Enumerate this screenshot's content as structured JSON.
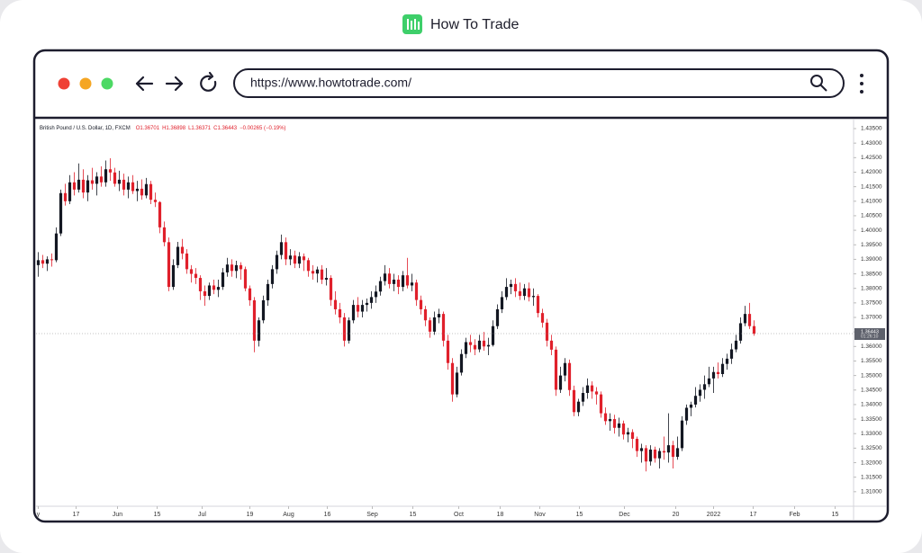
{
  "header": {
    "title": "How To Trade"
  },
  "browser": {
    "url": "https://www.howtotrade.com/"
  },
  "chart_data": {
    "type": "candlestick",
    "legend": {
      "instrument": "British Pound / U.S. Dollar, 1D, FXCM",
      "ohlc": [
        "O1.36701",
        "H1.36898",
        "L1.36371",
        "C1.36443"
      ],
      "change": "−0.00265 (−0.19%)"
    },
    "countdown": "01:26:10",
    "up_color": "#131722",
    "down_color": "#e0202b",
    "xlim": [
      -0.5,
      181.1
    ],
    "ylim": [
      1.305,
      1.4381
    ],
    "xticks": [
      {
        "value": 0,
        "label": "y"
      },
      {
        "value": 8.4,
        "label": "17"
      },
      {
        "value": 17.6,
        "label": "Jun"
      },
      {
        "value": 26.4,
        "label": "15"
      },
      {
        "value": 36.4,
        "label": "Jul"
      },
      {
        "value": 47,
        "label": "19"
      },
      {
        "value": 55.6,
        "label": "Aug"
      },
      {
        "value": 64.2,
        "label": "16"
      },
      {
        "value": 74.2,
        "label": "Sep"
      },
      {
        "value": 83.2,
        "label": "15"
      },
      {
        "value": 93.4,
        "label": "Oct"
      },
      {
        "value": 102.6,
        "label": "18"
      },
      {
        "value": 111.4,
        "label": "Nov"
      },
      {
        "value": 120.2,
        "label": "15"
      },
      {
        "value": 130.2,
        "label": "Dec"
      },
      {
        "value": 141.6,
        "label": "20"
      },
      {
        "value": 150,
        "label": "2022"
      },
      {
        "value": 158.8,
        "label": "17"
      },
      {
        "value": 168,
        "label": "Feb"
      },
      {
        "value": 177,
        "label": "15"
      }
    ],
    "yticks": [
      {
        "value": 1.435,
        "label": "1.43500"
      },
      {
        "value": 1.43,
        "label": "1.43000"
      },
      {
        "value": 1.425,
        "label": "1.42500"
      },
      {
        "value": 1.42,
        "label": "1.42000"
      },
      {
        "value": 1.415,
        "label": "1.41500"
      },
      {
        "value": 1.41,
        "label": "1.41000"
      },
      {
        "value": 1.405,
        "label": "1.40500"
      },
      {
        "value": 1.4,
        "label": "1.40000"
      },
      {
        "value": 1.395,
        "label": "1.39500"
      },
      {
        "value": 1.39,
        "label": "1.39000"
      },
      {
        "value": 1.385,
        "label": "1.38500"
      },
      {
        "value": 1.38,
        "label": "1.38000"
      },
      {
        "value": 1.375,
        "label": "1.37500"
      },
      {
        "value": 1.37,
        "label": "1.37000"
      },
      {
        "value": 1.365,
        "label": "1.36500"
      },
      {
        "value": 1.36,
        "label": "1.36000"
      },
      {
        "value": 1.355,
        "label": "1.35500"
      },
      {
        "value": 1.35,
        "label": "1.35000"
      },
      {
        "value": 1.345,
        "label": "1.34500"
      },
      {
        "value": 1.34,
        "label": "1.34000"
      },
      {
        "value": 1.335,
        "label": "1.33500"
      },
      {
        "value": 1.33,
        "label": "1.33000"
      },
      {
        "value": 1.325,
        "label": "1.32500"
      },
      {
        "value": 1.32,
        "label": "1.32000"
      },
      {
        "value": 1.315,
        "label": "1.31500"
      },
      {
        "value": 1.31,
        "label": "1.31000"
      }
    ],
    "candles": [
      [
        1.388,
        1.3925,
        1.384,
        1.3897
      ],
      [
        1.3897,
        1.3915,
        1.387,
        1.3885
      ],
      [
        1.3885,
        1.391,
        1.386,
        1.39
      ],
      [
        1.39,
        1.392,
        1.3875,
        1.3897
      ],
      [
        1.3897,
        1.401,
        1.389,
        1.3989
      ],
      [
        1.3989,
        1.414,
        1.398,
        1.4128
      ],
      [
        1.4128,
        1.416,
        1.4085,
        1.41
      ],
      [
        1.41,
        1.419,
        1.409,
        1.4165
      ],
      [
        1.4165,
        1.42,
        1.412,
        1.414
      ],
      [
        1.414,
        1.423,
        1.413,
        1.4174
      ],
      [
        1.4174,
        1.421,
        1.411,
        1.413
      ],
      [
        1.413,
        1.419,
        1.41,
        1.4172
      ],
      [
        1.4172,
        1.4215,
        1.414,
        1.416
      ],
      [
        1.416,
        1.42,
        1.412,
        1.4185
      ],
      [
        1.4185,
        1.422,
        1.415,
        1.4165
      ],
      [
        1.4165,
        1.424,
        1.415,
        1.421
      ],
      [
        1.421,
        1.4248,
        1.417,
        1.4199
      ],
      [
        1.4199,
        1.4215,
        1.415,
        1.416
      ],
      [
        1.416,
        1.4205,
        1.4135,
        1.4174
      ],
      [
        1.4174,
        1.4195,
        1.412,
        1.414
      ],
      [
        1.414,
        1.4185,
        1.411,
        1.4165
      ],
      [
        1.4165,
        1.419,
        1.4125,
        1.4135
      ],
      [
        1.4135,
        1.417,
        1.41,
        1.4143
      ],
      [
        1.4143,
        1.4175,
        1.4105,
        1.412
      ],
      [
        1.412,
        1.418,
        1.411,
        1.4159
      ],
      [
        1.4159,
        1.417,
        1.409,
        1.4105
      ],
      [
        1.4105,
        1.413,
        1.408,
        1.4097
      ],
      [
        1.4097,
        1.41,
        1.399,
        1.401
      ],
      [
        1.401,
        1.403,
        1.3945,
        1.3959
      ],
      [
        1.3959,
        1.3975,
        1.379,
        1.3805
      ],
      [
        1.3805,
        1.39,
        1.3795,
        1.388
      ],
      [
        1.388,
        1.396,
        1.387,
        1.3943
      ],
      [
        1.3943,
        1.397,
        1.39,
        1.392
      ],
      [
        1.392,
        1.3935,
        1.385,
        1.3866
      ],
      [
        1.3866,
        1.388,
        1.382,
        1.385
      ],
      [
        1.385,
        1.387,
        1.3815,
        1.3836
      ],
      [
        1.3836,
        1.3845,
        1.376,
        1.379
      ],
      [
        1.379,
        1.381,
        1.374,
        1.3774
      ],
      [
        1.3774,
        1.382,
        1.376,
        1.381
      ],
      [
        1.381,
        1.383,
        1.378,
        1.3795
      ],
      [
        1.3795,
        1.383,
        1.377,
        1.3805
      ],
      [
        1.3805,
        1.387,
        1.3795,
        1.3855
      ],
      [
        1.3855,
        1.3905,
        1.384,
        1.3882
      ],
      [
        1.3882,
        1.39,
        1.384,
        1.386
      ],
      [
        1.386,
        1.3895,
        1.3835,
        1.388
      ],
      [
        1.388,
        1.389,
        1.383,
        1.3866
      ],
      [
        1.3866,
        1.3875,
        1.379,
        1.38
      ],
      [
        1.38,
        1.381,
        1.374,
        1.3759
      ],
      [
        1.3759,
        1.377,
        1.358,
        1.362
      ],
      [
        1.362,
        1.37,
        1.36,
        1.369
      ],
      [
        1.369,
        1.3775,
        1.368,
        1.3759
      ],
      [
        1.3759,
        1.383,
        1.374,
        1.3815
      ],
      [
        1.3815,
        1.388,
        1.38,
        1.3866
      ],
      [
        1.3866,
        1.393,
        1.385,
        1.3915
      ],
      [
        1.3915,
        1.3985,
        1.39,
        1.3959
      ],
      [
        1.3959,
        1.3975,
        1.388,
        1.39
      ],
      [
        1.39,
        1.3935,
        1.388,
        1.3913
      ],
      [
        1.3913,
        1.393,
        1.387,
        1.3885
      ],
      [
        1.3885,
        1.3925,
        1.387,
        1.391
      ],
      [
        1.391,
        1.392,
        1.386,
        1.3897
      ],
      [
        1.3897,
        1.3905,
        1.384,
        1.386
      ],
      [
        1.386,
        1.388,
        1.383,
        1.3851
      ],
      [
        1.3851,
        1.3875,
        1.382,
        1.3865
      ],
      [
        1.3865,
        1.388,
        1.3815,
        1.383
      ],
      [
        1.383,
        1.387,
        1.381,
        1.3836
      ],
      [
        1.3836,
        1.3845,
        1.374,
        1.376
      ],
      [
        1.376,
        1.379,
        1.371,
        1.3728
      ],
      [
        1.3728,
        1.375,
        1.368,
        1.37
      ],
      [
        1.37,
        1.3715,
        1.36,
        1.362
      ],
      [
        1.362,
        1.37,
        1.361,
        1.369
      ],
      [
        1.369,
        1.376,
        1.368,
        1.3743
      ],
      [
        1.3743,
        1.377,
        1.37,
        1.372
      ],
      [
        1.372,
        1.376,
        1.37,
        1.3743
      ],
      [
        1.3743,
        1.3765,
        1.372,
        1.375
      ],
      [
        1.375,
        1.379,
        1.373,
        1.377
      ],
      [
        1.377,
        1.381,
        1.375,
        1.3789
      ],
      [
        1.3789,
        1.384,
        1.3775,
        1.3825
      ],
      [
        1.3825,
        1.388,
        1.381,
        1.3851
      ],
      [
        1.3851,
        1.387,
        1.38,
        1.3815
      ],
      [
        1.3815,
        1.385,
        1.379,
        1.383
      ],
      [
        1.383,
        1.3845,
        1.378,
        1.3805
      ],
      [
        1.3805,
        1.386,
        1.379,
        1.3845
      ],
      [
        1.3845,
        1.3905,
        1.38,
        1.381
      ],
      [
        1.381,
        1.385,
        1.379,
        1.382
      ],
      [
        1.382,
        1.383,
        1.374,
        1.376
      ],
      [
        1.376,
        1.3775,
        1.371,
        1.3728
      ],
      [
        1.3728,
        1.374,
        1.367,
        1.369
      ],
      [
        1.369,
        1.37,
        1.363,
        1.3651
      ],
      [
        1.3651,
        1.372,
        1.364,
        1.37
      ],
      [
        1.37,
        1.373,
        1.368,
        1.3712
      ],
      [
        1.3712,
        1.372,
        1.36,
        1.362
      ],
      [
        1.362,
        1.364,
        1.352,
        1.3543
      ],
      [
        1.3543,
        1.356,
        1.341,
        1.3435
      ],
      [
        1.3435,
        1.353,
        1.3425,
        1.351
      ],
      [
        1.351,
        1.359,
        1.35,
        1.3574
      ],
      [
        1.3574,
        1.363,
        1.356,
        1.3615
      ],
      [
        1.3615,
        1.364,
        1.358,
        1.3605
      ],
      [
        1.3605,
        1.3625,
        1.357,
        1.359
      ],
      [
        1.359,
        1.364,
        1.358,
        1.362
      ],
      [
        1.362,
        1.365,
        1.3585,
        1.36
      ],
      [
        1.36,
        1.363,
        1.357,
        1.3605
      ],
      [
        1.3605,
        1.369,
        1.36,
        1.367
      ],
      [
        1.367,
        1.3745,
        1.366,
        1.3728
      ],
      [
        1.3728,
        1.379,
        1.3715,
        1.377
      ],
      [
        1.377,
        1.3835,
        1.376,
        1.3805
      ],
      [
        1.3805,
        1.383,
        1.378,
        1.3815
      ],
      [
        1.3815,
        1.3835,
        1.377,
        1.379
      ],
      [
        1.379,
        1.382,
        1.376,
        1.3774
      ],
      [
        1.3774,
        1.3815,
        1.376,
        1.38
      ],
      [
        1.38,
        1.382,
        1.3755,
        1.377
      ],
      [
        1.377,
        1.38,
        1.374,
        1.3774
      ],
      [
        1.3774,
        1.378,
        1.37,
        1.3715
      ],
      [
        1.3715,
        1.373,
        1.3665,
        1.3682
      ],
      [
        1.3682,
        1.3695,
        1.36,
        1.362
      ],
      [
        1.362,
        1.364,
        1.357,
        1.3589
      ],
      [
        1.3589,
        1.36,
        1.343,
        1.3451
      ],
      [
        1.3451,
        1.353,
        1.344,
        1.35
      ],
      [
        1.35,
        1.356,
        1.348,
        1.3543
      ],
      [
        1.3543,
        1.3555,
        1.343,
        1.345
      ],
      [
        1.345,
        1.3465,
        1.336,
        1.3374
      ],
      [
        1.3374,
        1.342,
        1.336,
        1.341
      ],
      [
        1.341,
        1.346,
        1.3395,
        1.344
      ],
      [
        1.344,
        1.349,
        1.342,
        1.3466
      ],
      [
        1.3466,
        1.348,
        1.342,
        1.3445
      ],
      [
        1.3445,
        1.346,
        1.34,
        1.3435
      ],
      [
        1.3435,
        1.3445,
        1.3355,
        1.337
      ],
      [
        1.337,
        1.339,
        1.333,
        1.3343
      ],
      [
        1.3343,
        1.337,
        1.331,
        1.335
      ],
      [
        1.335,
        1.3365,
        1.33,
        1.332
      ],
      [
        1.332,
        1.3355,
        1.329,
        1.3335
      ],
      [
        1.3335,
        1.3345,
        1.328,
        1.3297
      ],
      [
        1.3297,
        1.332,
        1.327,
        1.3305
      ],
      [
        1.3305,
        1.3315,
        1.325,
        1.3282
      ],
      [
        1.3282,
        1.329,
        1.322,
        1.324
      ],
      [
        1.324,
        1.3265,
        1.32,
        1.325
      ],
      [
        1.325,
        1.326,
        1.317,
        1.3204
      ],
      [
        1.3204,
        1.326,
        1.319,
        1.3245
      ],
      [
        1.3245,
        1.3255,
        1.32,
        1.3215
      ],
      [
        1.3215,
        1.325,
        1.318,
        1.324
      ],
      [
        1.324,
        1.329,
        1.321,
        1.3235
      ],
      [
        1.3235,
        1.337,
        1.32,
        1.326
      ],
      [
        1.326,
        1.3275,
        1.318,
        1.322
      ],
      [
        1.322,
        1.329,
        1.321,
        1.325
      ],
      [
        1.325,
        1.336,
        1.324,
        1.3345
      ],
      [
        1.3345,
        1.34,
        1.333,
        1.3389
      ],
      [
        1.3389,
        1.341,
        1.336,
        1.34
      ],
      [
        1.34,
        1.346,
        1.339,
        1.343
      ],
      [
        1.343,
        1.347,
        1.341,
        1.3451
      ],
      [
        1.3451,
        1.35,
        1.342,
        1.347
      ],
      [
        1.347,
        1.353,
        1.346,
        1.349
      ],
      [
        1.349,
        1.353,
        1.344,
        1.3512
      ],
      [
        1.3512,
        1.3545,
        1.349,
        1.3505
      ],
      [
        1.3505,
        1.356,
        1.3495,
        1.354
      ],
      [
        1.354,
        1.3575,
        1.352,
        1.3558
      ],
      [
        1.3558,
        1.361,
        1.354,
        1.359
      ],
      [
        1.359,
        1.364,
        1.358,
        1.362
      ],
      [
        1.362,
        1.37,
        1.361,
        1.368
      ],
      [
        1.368,
        1.374,
        1.367,
        1.3712
      ],
      [
        1.3712,
        1.375,
        1.366,
        1.367
      ],
      [
        1.36701,
        1.36898,
        1.36371,
        1.36443
      ]
    ]
  }
}
